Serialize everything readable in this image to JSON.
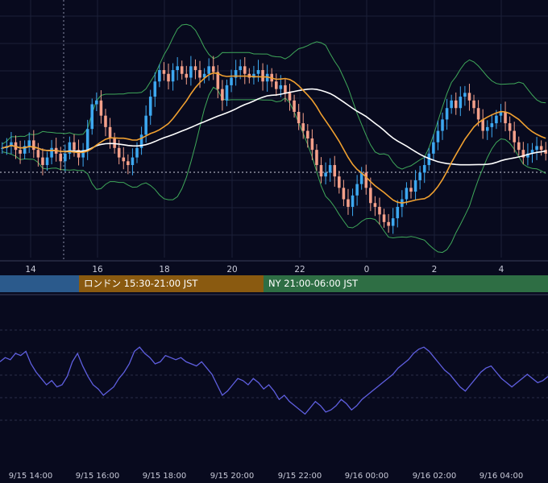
{
  "chart_data": [
    {
      "type": "candlestick",
      "panel": "price",
      "overlays": [
        "bollinger-bands",
        "moving-average-fast",
        "moving-average-slow",
        "horizontal-dotted-level"
      ],
      "x_ticks": [
        "14",
        "16",
        "18",
        "20",
        "22",
        "0",
        "2",
        "4"
      ],
      "grid": true,
      "colors": {
        "up": "#3da8f0",
        "down": "#f4a08a",
        "bands": "#3fa85a",
        "ma_fast": "#f0a030",
        "ma_slow": "#ffffff"
      },
      "close_profile": [
        0.45,
        0.46,
        0.48,
        0.44,
        0.42,
        0.46,
        0.49,
        0.44,
        0.4,
        0.36,
        0.4,
        0.45,
        0.42,
        0.38,
        0.42,
        0.48,
        0.44,
        0.4,
        0.44,
        0.55,
        0.68,
        0.7,
        0.62,
        0.56,
        0.5,
        0.45,
        0.4,
        0.38,
        0.36,
        0.4,
        0.45,
        0.52,
        0.62,
        0.72,
        0.8,
        0.86,
        0.84,
        0.8,
        0.86,
        0.88,
        0.84,
        0.82,
        0.88,
        0.86,
        0.82,
        0.84,
        0.88,
        0.85,
        0.76,
        0.7,
        0.78,
        0.82,
        0.86,
        0.88,
        0.84,
        0.82,
        0.84,
        0.86,
        0.8,
        0.84,
        0.8,
        0.76,
        0.78,
        0.74,
        0.7,
        0.64,
        0.58,
        0.54,
        0.5,
        0.44,
        0.36,
        0.3,
        0.32,
        0.36,
        0.3,
        0.24,
        0.18,
        0.14,
        0.2,
        0.26,
        0.32,
        0.24,
        0.16,
        0.14,
        0.1,
        0.06,
        0.04,
        0.08,
        0.14,
        0.18,
        0.24,
        0.22,
        0.28,
        0.32,
        0.36,
        0.42,
        0.48,
        0.54,
        0.6,
        0.66,
        0.7,
        0.66,
        0.72,
        0.74,
        0.7,
        0.66,
        0.6,
        0.54,
        0.56,
        0.58,
        0.62,
        0.64,
        0.58,
        0.54,
        0.48,
        0.44,
        0.4,
        0.42,
        0.44,
        0.46,
        0.44,
        0.42
      ]
    },
    {
      "type": "line",
      "panel": "oscillator",
      "color": "#5f5fe0",
      "x_ticks": [
        "9/15 14:00",
        "9/15 16:00",
        "9/15 18:00",
        "9/15 20:00",
        "9/15 22:00",
        "9/16 00:00",
        "9/16 02:00",
        "9/16 04:00"
      ],
      "grid": true,
      "values_profile": [
        0.62,
        0.66,
        0.64,
        0.7,
        0.68,
        0.72,
        0.6,
        0.52,
        0.46,
        0.4,
        0.44,
        0.38,
        0.4,
        0.48,
        0.62,
        0.7,
        0.58,
        0.48,
        0.4,
        0.36,
        0.3,
        0.34,
        0.38,
        0.46,
        0.52,
        0.6,
        0.72,
        0.76,
        0.7,
        0.66,
        0.6,
        0.62,
        0.68,
        0.66,
        0.64,
        0.66,
        0.62,
        0.6,
        0.58,
        0.62,
        0.56,
        0.5,
        0.4,
        0.3,
        0.34,
        0.4,
        0.46,
        0.44,
        0.4,
        0.46,
        0.42,
        0.36,
        0.4,
        0.34,
        0.26,
        0.3,
        0.24,
        0.2,
        0.16,
        0.12,
        0.18,
        0.24,
        0.2,
        0.14,
        0.16,
        0.2,
        0.26,
        0.22,
        0.16,
        0.2,
        0.26,
        0.3,
        0.34,
        0.38,
        0.42,
        0.46,
        0.5,
        0.56,
        0.6,
        0.64,
        0.7,
        0.74,
        0.76,
        0.72,
        0.66,
        0.6,
        0.54,
        0.5,
        0.44,
        0.38,
        0.34,
        0.4,
        0.46,
        0.52,
        0.56,
        0.58,
        0.52,
        0.46,
        0.42,
        0.38,
        0.42,
        0.46,
        0.5,
        0.46,
        0.42,
        0.44,
        0.48
      ]
    }
  ],
  "sessions": [
    {
      "label": "",
      "color": "#2b5a8c"
    },
    {
      "label": "ロンドン 15:30-21:00 JST",
      "color": "#8a5a10"
    },
    {
      "label": "NY 21:00-06:00 JST",
      "color": "#2e6e44"
    }
  ]
}
